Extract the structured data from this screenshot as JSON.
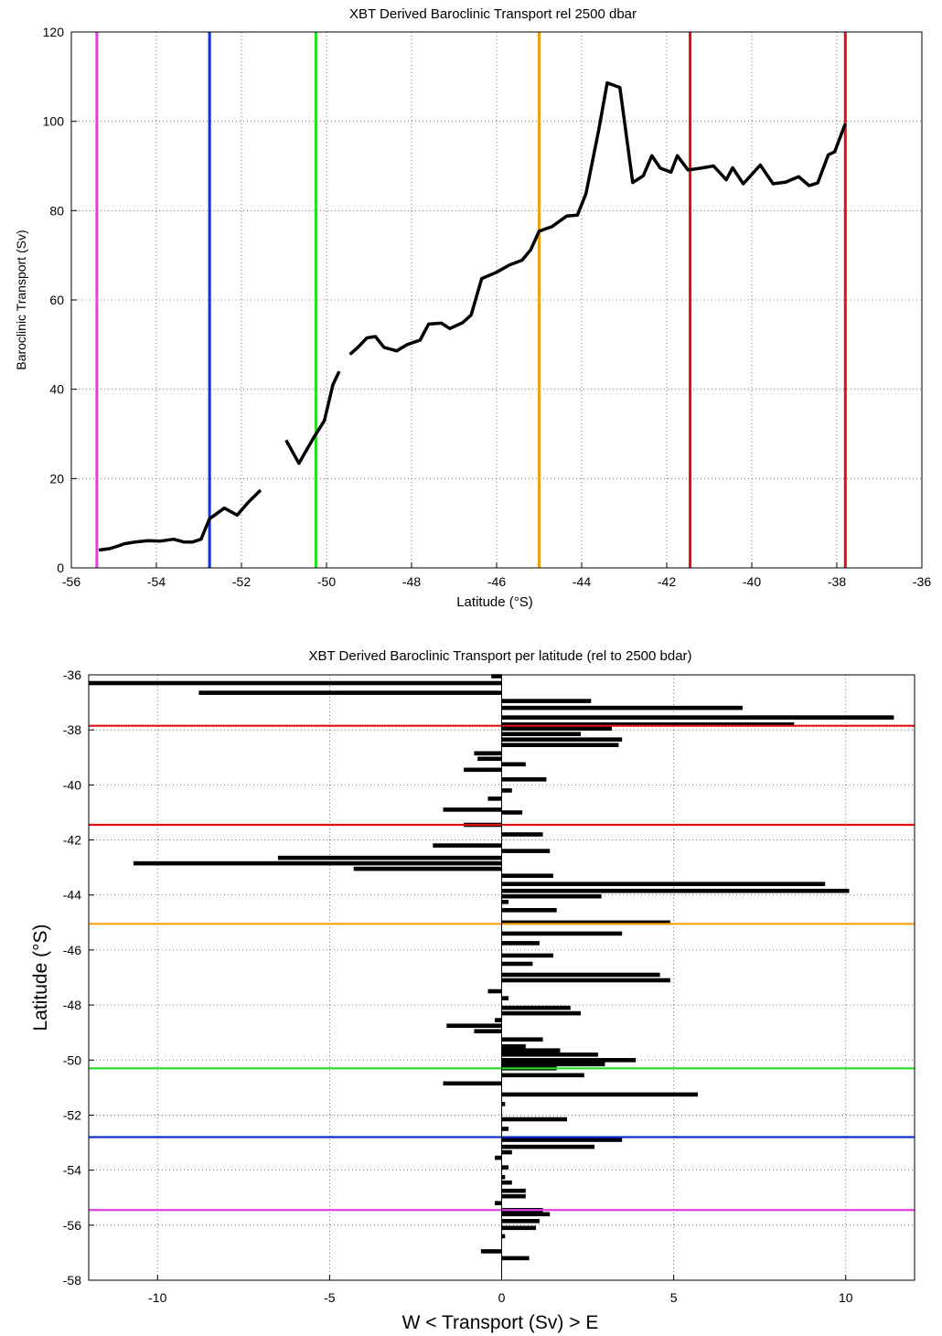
{
  "chart_data": [
    {
      "type": "line",
      "title": "XBT Derived Baroclinic Transport rel 2500 dbar",
      "xlabel": "Latitude (°S)",
      "ylabel": "Baroclinic Transport (Sv)",
      "xlim": [
        -56,
        -36
      ],
      "ylim": [
        0,
        120
      ],
      "xticks": [
        -56,
        -54,
        -52,
        -50,
        -48,
        -46,
        -44,
        -42,
        -40,
        -38,
        -36
      ],
      "yticks": [
        0,
        20,
        40,
        60,
        80,
        100,
        120
      ],
      "grid": true,
      "series": [
        {
          "color": "#000000",
          "segments": [
            [
              [
                -55.35,
                4.0
              ],
              [
                -55.1,
                4.3
              ],
              [
                -54.9,
                4.9
              ],
              [
                -54.75,
                5.4
              ],
              [
                -54.5,
                5.8
              ],
              [
                -54.2,
                6.1
              ],
              [
                -53.9,
                6.0
              ],
              [
                -53.6,
                6.4
              ],
              [
                -53.35,
                5.8
              ],
              [
                -53.15,
                5.8
              ],
              [
                -52.95,
                6.4
              ],
              [
                -52.75,
                11.0
              ],
              [
                -52.4,
                13.4
              ],
              [
                -52.1,
                11.8
              ],
              [
                -51.85,
                14.6
              ],
              [
                -51.55,
                17.4
              ]
            ],
            [
              [
                -50.95,
                28.6
              ],
              [
                -50.65,
                23.4
              ],
              [
                -50.3,
                29.2
              ],
              [
                -50.05,
                33.0
              ],
              [
                -49.85,
                41.0
              ],
              [
                -49.7,
                44.0
              ]
            ],
            [
              [
                -49.45,
                47.8
              ],
              [
                -49.25,
                49.5
              ],
              [
                -49.05,
                51.5
              ],
              [
                -48.85,
                51.8
              ],
              [
                -48.65,
                49.4
              ],
              [
                -48.35,
                48.6
              ],
              [
                -48.1,
                50.0
              ],
              [
                -47.8,
                51.0
              ],
              [
                -47.6,
                54.6
              ],
              [
                -47.3,
                54.8
              ],
              [
                -47.1,
                53.6
              ],
              [
                -46.8,
                54.9
              ],
              [
                -46.6,
                56.6
              ],
              [
                -46.35,
                64.8
              ],
              [
                -46.0,
                66.2
              ],
              [
                -45.7,
                67.8
              ],
              [
                -45.4,
                68.9
              ],
              [
                -45.2,
                71.2
              ],
              [
                -45.0,
                75.4
              ],
              [
                -44.7,
                76.4
              ],
              [
                -44.35,
                78.8
              ],
              [
                -44.1,
                79.0
              ],
              [
                -43.9,
                83.8
              ],
              [
                -43.6,
                98.0
              ],
              [
                -43.4,
                108.6
              ],
              [
                -43.1,
                107.6
              ],
              [
                -42.8,
                86.3
              ],
              [
                -42.55,
                87.8
              ],
              [
                -42.35,
                92.3
              ],
              [
                -42.15,
                89.5
              ],
              [
                -41.9,
                88.6
              ],
              [
                -41.75,
                92.3
              ],
              [
                -41.5,
                89.1
              ],
              [
                -41.2,
                89.5
              ],
              [
                -40.9,
                90.0
              ],
              [
                -40.6,
                86.9
              ],
              [
                -40.45,
                89.6
              ],
              [
                -40.2,
                86.0
              ],
              [
                -39.8,
                90.2
              ],
              [
                -39.5,
                86.0
              ],
              [
                -39.2,
                86.4
              ],
              [
                -38.9,
                87.6
              ],
              [
                -38.65,
                85.6
              ],
              [
                -38.45,
                86.2
              ],
              [
                -38.2,
                92.5
              ],
              [
                -38.05,
                93.2
              ],
              [
                -37.8,
                99.5
              ]
            ]
          ]
        }
      ],
      "vlines": [
        {
          "x": -55.4,
          "color": "#e040e0"
        },
        {
          "x": -52.75,
          "color": "#1030d0"
        },
        {
          "x": -50.25,
          "color": "#20e020"
        },
        {
          "x": -45.0,
          "color": "#f0a010"
        },
        {
          "x": -41.45,
          "color": "#e01010"
        },
        {
          "x": -37.8,
          "color": "#e01010"
        }
      ]
    },
    {
      "type": "bar",
      "orientation": "horizontal",
      "title": "XBT Derived Baroclinic Transport per latitude (rel to 2500 bdar)",
      "xlabel": "W <  Transport (Sv)  > E",
      "ylabel": "Latitude (°S)",
      "xlim": [
        -12,
        12
      ],
      "ylim": [
        -58,
        -36
      ],
      "xticks": [
        -10,
        -5,
        0,
        5,
        10
      ],
      "yticks": [
        -36,
        -38,
        -40,
        -42,
        -44,
        -46,
        -48,
        -50,
        -52,
        -54,
        -56,
        -58
      ],
      "grid": true,
      "bar_color": "#000000",
      "latitudes": [
        -36.05,
        -36.3,
        -36.65,
        -36.95,
        -37.2,
        -37.55,
        -37.8,
        -37.95,
        -38.15,
        -38.35,
        -38.55,
        -38.85,
        -39.05,
        -39.25,
        -39.45,
        -39.8,
        -40.2,
        -40.5,
        -40.9,
        -41.0,
        -41.45,
        -41.8,
        -42.2,
        -42.4,
        -42.65,
        -42.85,
        -43.05,
        -43.3,
        -43.6,
        -43.85,
        -44.05,
        -44.25,
        -44.55,
        -45.0,
        -45.4,
        -45.75,
        -46.2,
        -46.5,
        -46.9,
        -47.1,
        -47.5,
        -47.75,
        -48.1,
        -48.3,
        -48.55,
        -48.75,
        -48.95,
        -49.25,
        -49.5,
        -49.65,
        -49.8,
        -50.0,
        -50.15,
        -50.3,
        -50.55,
        -50.85,
        -51.25,
        -51.6,
        -52.15,
        -52.5,
        -52.9,
        -53.15,
        -53.35,
        -53.55,
        -53.9,
        -54.25,
        -54.45,
        -54.75,
        -54.95,
        -55.2,
        -55.45,
        -55.6,
        -55.85,
        -56.1,
        -56.4,
        -56.95,
        -57.2
      ],
      "values": [
        -0.3,
        -12.0,
        -8.8,
        2.6,
        7.0,
        11.4,
        8.5,
        3.2,
        2.3,
        3.5,
        3.4,
        -0.8,
        -0.7,
        0.7,
        -1.1,
        1.3,
        0.3,
        -0.4,
        -1.7,
        0.6,
        -1.1,
        1.2,
        -2.0,
        1.4,
        -6.5,
        -10.7,
        -4.3,
        1.5,
        9.4,
        10.1,
        2.9,
        0.2,
        1.6,
        4.9,
        3.5,
        1.1,
        1.5,
        0.9,
        4.6,
        4.9,
        -0.4,
        0.2,
        2.0,
        2.3,
        -0.2,
        -1.6,
        -0.8,
        1.2,
        0.7,
        1.7,
        2.8,
        3.9,
        3.0,
        1.6,
        2.4,
        -1.7,
        5.7,
        0.1,
        1.9,
        0.2,
        3.5,
        2.7,
        0.3,
        -0.2,
        0.2,
        0.1,
        0.3,
        0.7,
        0.7,
        -0.2,
        1.2,
        1.4,
        1.1,
        1.0,
        0.1,
        -0.6,
        0.8
      ],
      "hlines": [
        {
          "y": -37.85,
          "color": "#e01010"
        },
        {
          "y": -41.45,
          "color": "#e01010"
        },
        {
          "y": -45.05,
          "color": "#f0a010"
        },
        {
          "y": -50.3,
          "color": "#20e020"
        },
        {
          "y": -52.8,
          "color": "#1030d0"
        },
        {
          "y": -55.45,
          "color": "#e040e0"
        }
      ]
    }
  ]
}
